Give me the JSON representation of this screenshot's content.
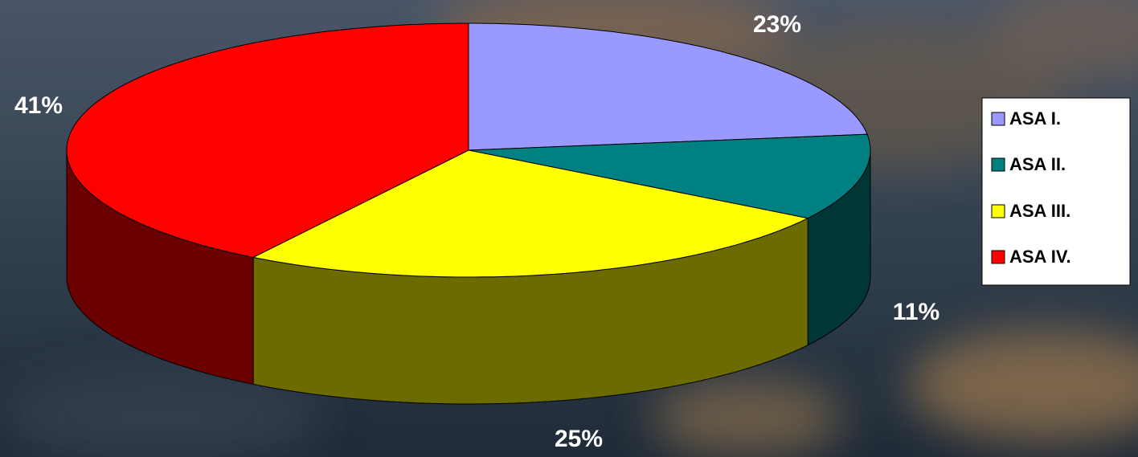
{
  "chart_data": {
    "type": "pie",
    "three_d": true,
    "categories": [
      "ASA I.",
      "ASA II.",
      "ASA III.",
      "ASA IV."
    ],
    "values": [
      23,
      11,
      25,
      41
    ],
    "value_labels": [
      "23%",
      "11%",
      "25%",
      "41%"
    ],
    "colors": [
      "#9999ff",
      "#008080",
      "#ffff00",
      "#ff0000"
    ],
    "legend": "right"
  }
}
